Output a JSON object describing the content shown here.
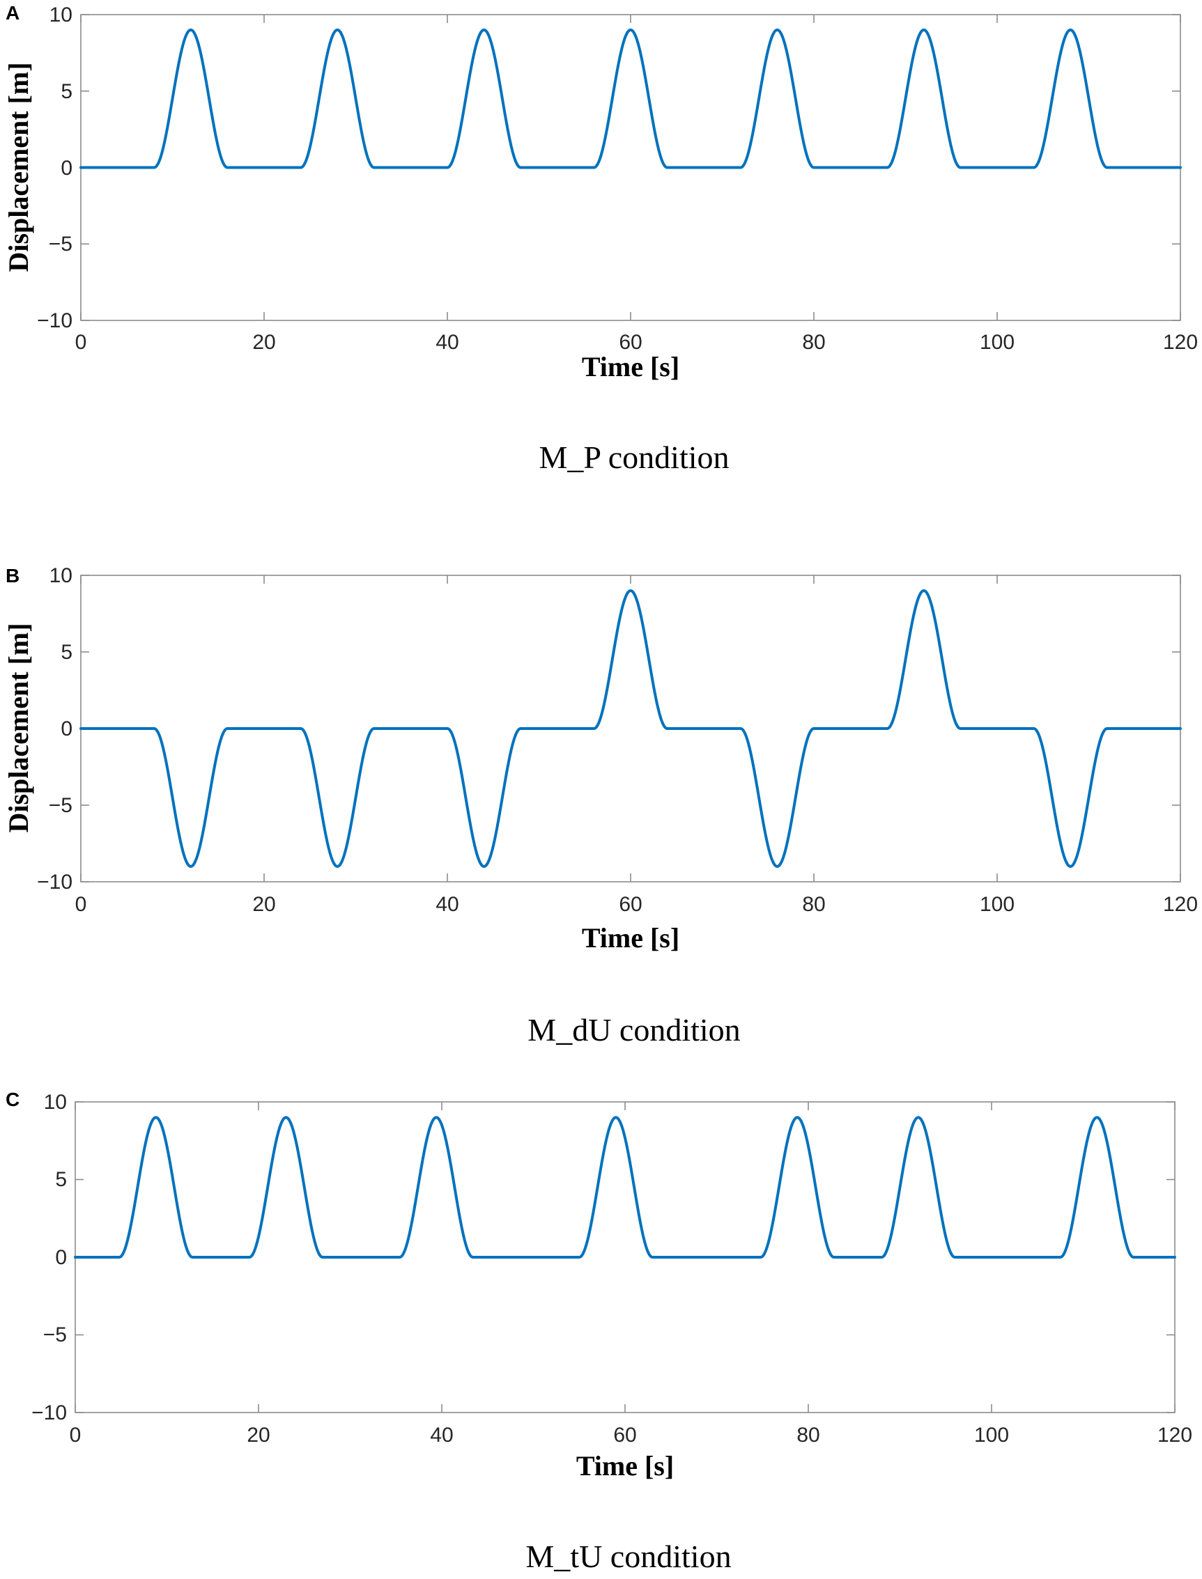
{
  "chart_data": [
    {
      "type": "line",
      "panel_label": "A",
      "caption": "M_P condition",
      "xlabel": "Time [s]",
      "ylabel": "Displacement [m]",
      "xlim": [
        0,
        120
      ],
      "ylim": [
        -10,
        10
      ],
      "xticks": [
        "0",
        "20",
        "40",
        "60",
        "80",
        "100",
        "120"
      ],
      "yticks": [
        "10",
        "5",
        "0",
        "−5",
        "−10"
      ],
      "grid": false,
      "pulse_width_s": 8,
      "pulse_amplitude_m": 9,
      "series": [
        {
          "color": "#0072BD",
          "pulses": [
            {
              "start": 8,
              "peak": 9
            },
            {
              "start": 24,
              "peak": 9
            },
            {
              "start": 40,
              "peak": 9
            },
            {
              "start": 56,
              "peak": 9
            },
            {
              "start": 72,
              "peak": 9
            },
            {
              "start": 88,
              "peak": 9
            },
            {
              "start": 104,
              "peak": 9
            }
          ]
        }
      ]
    },
    {
      "type": "line",
      "panel_label": "B",
      "caption": "M_dU condition",
      "xlabel": "Time [s]",
      "ylabel": "Displacement [m]",
      "xlim": [
        0,
        120
      ],
      "ylim": [
        -10,
        10
      ],
      "xticks": [
        "0",
        "20",
        "40",
        "60",
        "80",
        "100",
        "120"
      ],
      "yticks": [
        "10",
        "5",
        "0",
        "−5",
        "−10"
      ],
      "grid": false,
      "pulse_width_s": 8,
      "pulse_amplitude_m": 9,
      "series": [
        {
          "color": "#0072BD",
          "pulses": [
            {
              "start": 8,
              "peak": -9
            },
            {
              "start": 24,
              "peak": -9
            },
            {
              "start": 40,
              "peak": -9
            },
            {
              "start": 56,
              "peak": 9
            },
            {
              "start": 72,
              "peak": -9
            },
            {
              "start": 88,
              "peak": 9
            },
            {
              "start": 104,
              "peak": -9
            }
          ]
        }
      ]
    },
    {
      "type": "line",
      "panel_label": "C",
      "caption": "M_tU condition",
      "xlabel": "Time [s]",
      "ylabel": "",
      "xlim": [
        0,
        120
      ],
      "ylim": [
        -10,
        10
      ],
      "xticks": [
        "0",
        "20",
        "40",
        "60",
        "80",
        "100",
        "120"
      ],
      "yticks": [
        "10",
        "5",
        "0",
        "−5",
        "−10"
      ],
      "grid": false,
      "pulse_width_s": 8,
      "pulse_amplitude_m": 9,
      "series": [
        {
          "color": "#0072BD",
          "pulses": [
            {
              "start": 4.8,
              "peak": 9
            },
            {
              "start": 19,
              "peak": 9
            },
            {
              "start": 35.4,
              "peak": 9
            },
            {
              "start": 55,
              "peak": 9
            },
            {
              "start": 74.8,
              "peak": 9
            },
            {
              "start": 88,
              "peak": 9
            },
            {
              "start": 107.5,
              "peak": 9
            }
          ]
        }
      ]
    }
  ]
}
